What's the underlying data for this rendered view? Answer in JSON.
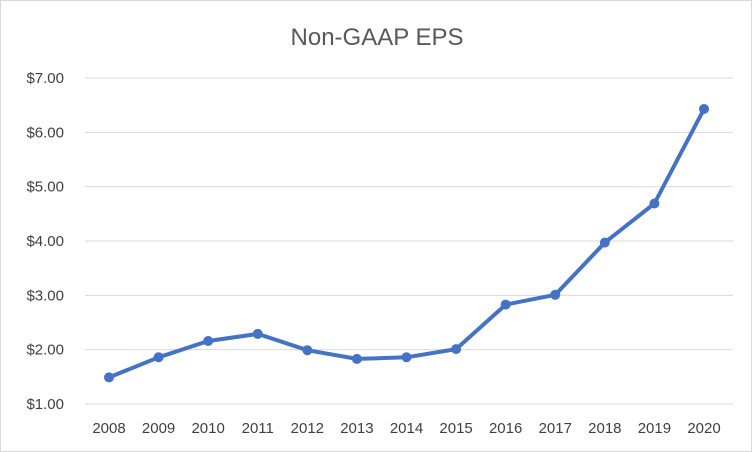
{
  "chart_data": {
    "type": "line",
    "title": "Non-GAAP EPS",
    "xlabel": "",
    "ylabel": "",
    "categories": [
      "2008",
      "2009",
      "2010",
      "2011",
      "2012",
      "2013",
      "2014",
      "2015",
      "2016",
      "2017",
      "2018",
      "2019",
      "2020"
    ],
    "series": [
      {
        "values": [
          1.49,
          1.86,
          2.16,
          2.29,
          1.99,
          1.83,
          1.86,
          2.01,
          2.83,
          3.01,
          3.97,
          4.69,
          6.43
        ]
      }
    ],
    "ylim": [
      1.0,
      7.0
    ],
    "yticks": [
      1.0,
      2.0,
      3.0,
      4.0,
      5.0,
      6.0,
      7.0
    ],
    "ytick_labels": [
      "$1.00",
      "$2.00",
      "$3.00",
      "$4.00",
      "$5.00",
      "$6.00",
      "$7.00"
    ],
    "grid": "horizontal",
    "legend": "none",
    "line_color": "#4472c4",
    "grid_color": "#d9d9d9"
  }
}
